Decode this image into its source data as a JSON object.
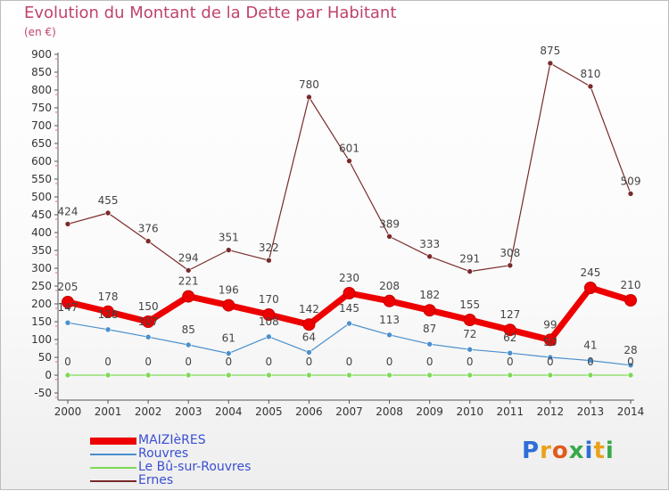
{
  "title": "Evolution du Montant de la Dette par Habitant",
  "subtitle": "(en €)",
  "brand": {
    "text": "Proxiti",
    "letter_colors": [
      "#2e6fd6",
      "#e9a21a",
      "#e05a1e",
      "#38a84a",
      "#2e6fd6",
      "#e9a21a",
      "#38a84a"
    ]
  },
  "chart_data": {
    "type": "line",
    "title": "Evolution du Montant de la Dette par Habitant",
    "subtitle": "(en €)",
    "xlabel": "",
    "ylabel": "",
    "ylim": [
      -50,
      900
    ],
    "yticks": [
      -50,
      0,
      50,
      100,
      150,
      200,
      250,
      300,
      350,
      400,
      450,
      500,
      550,
      600,
      650,
      700,
      750,
      800,
      850,
      900
    ],
    "grid": false,
    "legend_position": "bottom-left",
    "categories": [
      "2000",
      "2001",
      "2002",
      "2003",
      "2004",
      "2005",
      "2006",
      "2007",
      "2008",
      "2009",
      "2010",
      "2011",
      "2012",
      "2013",
      "2014"
    ],
    "series": [
      {
        "name": "MAIZIèRES",
        "color": "#ee0000",
        "values": [
          205,
          178,
          150,
          221,
          196,
          170,
          142,
          230,
          208,
          182,
          155,
          127,
          99,
          245,
          210
        ]
      },
      {
        "name": "Rouvres",
        "color": "#4a8fcc",
        "values": [
          147,
          128,
          107,
          85,
          61,
          108,
          64,
          145,
          113,
          87,
          72,
          62,
          50,
          41,
          28
        ]
      },
      {
        "name": "Le Bû-sur-Rouvres",
        "color": "#7ed957",
        "values": [
          0,
          0,
          0,
          0,
          0,
          0,
          0,
          0,
          0,
          0,
          0,
          0,
          0,
          0,
          0
        ]
      },
      {
        "name": "Ernes",
        "color": "#7a2a2a",
        "values": [
          424,
          455,
          376,
          294,
          351,
          322,
          780,
          601,
          389,
          333,
          291,
          308,
          875,
          810,
          509
        ]
      }
    ]
  }
}
